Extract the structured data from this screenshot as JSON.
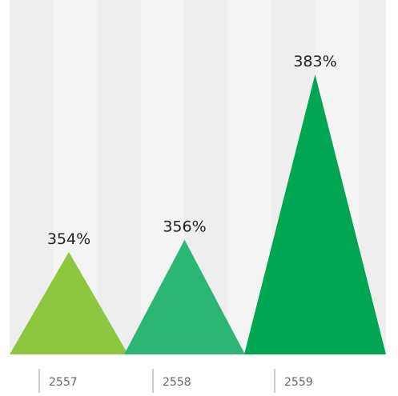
{
  "chart_data": {
    "type": "bar",
    "mark": "triangle",
    "categories": [
      "2557",
      "2558",
      "2559"
    ],
    "values": [
      354,
      356,
      383
    ],
    "value_labels": [
      "354%",
      "356%",
      "383%"
    ],
    "colors": [
      "#8dc63f",
      "#2bb673",
      "#00a651"
    ],
    "title": "",
    "xlabel": "",
    "ylabel": "",
    "grid": "alternating vertical bands",
    "band_colors": [
      "#eeeeee",
      "#f4f4f4"
    ],
    "legend": "none"
  }
}
